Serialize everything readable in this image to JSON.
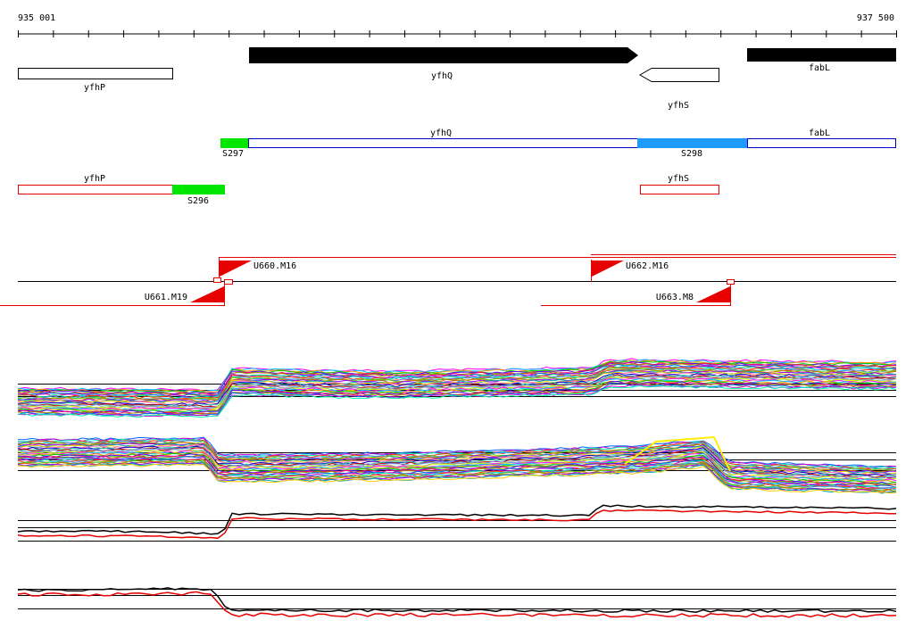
{
  "ruler": {
    "start_label": "935 001",
    "end_label": "937 500",
    "start": 935001,
    "end": 937500
  },
  "genes_row1": [
    {
      "label": "yfhP",
      "strand": "none"
    },
    {
      "label": "yfhQ",
      "strand": "+"
    },
    {
      "label": "yfhS",
      "strand": "-"
    },
    {
      "label": "fabL",
      "strand": "+"
    }
  ],
  "segments_row2": [
    {
      "label": "S297",
      "kind": "green"
    },
    {
      "label": "yfhQ",
      "kind": "blue-outline"
    },
    {
      "label": "S298",
      "kind": "blue-fill"
    },
    {
      "label": "fabL",
      "kind": "blue-outline"
    }
  ],
  "segments_row3": [
    {
      "label": "yfhP",
      "kind": "red-outline"
    },
    {
      "label": "S296",
      "kind": "green"
    },
    {
      "label": "yfhS",
      "kind": "red-outline"
    }
  ],
  "markers": [
    {
      "label": "U660.M16"
    },
    {
      "label": "U662.M16"
    },
    {
      "label": "U661.M19"
    },
    {
      "label": "U663.M8"
    }
  ],
  "colors": {
    "green": "#00e600",
    "blue_fill": "#1e9bff",
    "blue_outline": "#0000c8",
    "red": "#e60000",
    "black": "#000000"
  }
}
